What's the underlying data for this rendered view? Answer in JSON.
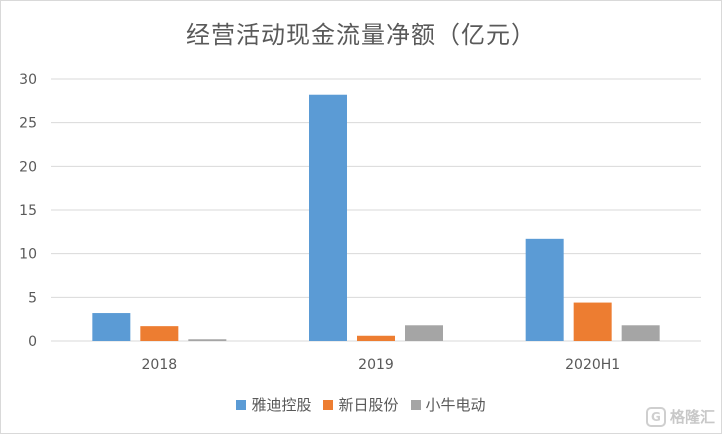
{
  "chart_data": {
    "type": "bar",
    "title": "经营活动现金流量净额（亿元）",
    "categories": [
      "2018",
      "2019",
      "2020H1"
    ],
    "series": [
      {
        "name": "雅迪控股",
        "color": "#5b9bd5",
        "values": [
          3.2,
          28.2,
          11.7
        ]
      },
      {
        "name": "新日股份",
        "color": "#ed7d31",
        "values": [
          1.7,
          0.6,
          4.4
        ]
      },
      {
        "name": "小牛电动",
        "color": "#a5a5a5",
        "values": [
          0.2,
          1.8,
          1.8
        ]
      }
    ],
    "ylim": [
      0,
      30
    ],
    "yticks": [
      "0",
      "5",
      "10",
      "15",
      "20",
      "25",
      "30"
    ],
    "grid": true,
    "legend_position": "bottom"
  },
  "watermark": {
    "text": "格隆汇",
    "icon": "G"
  }
}
